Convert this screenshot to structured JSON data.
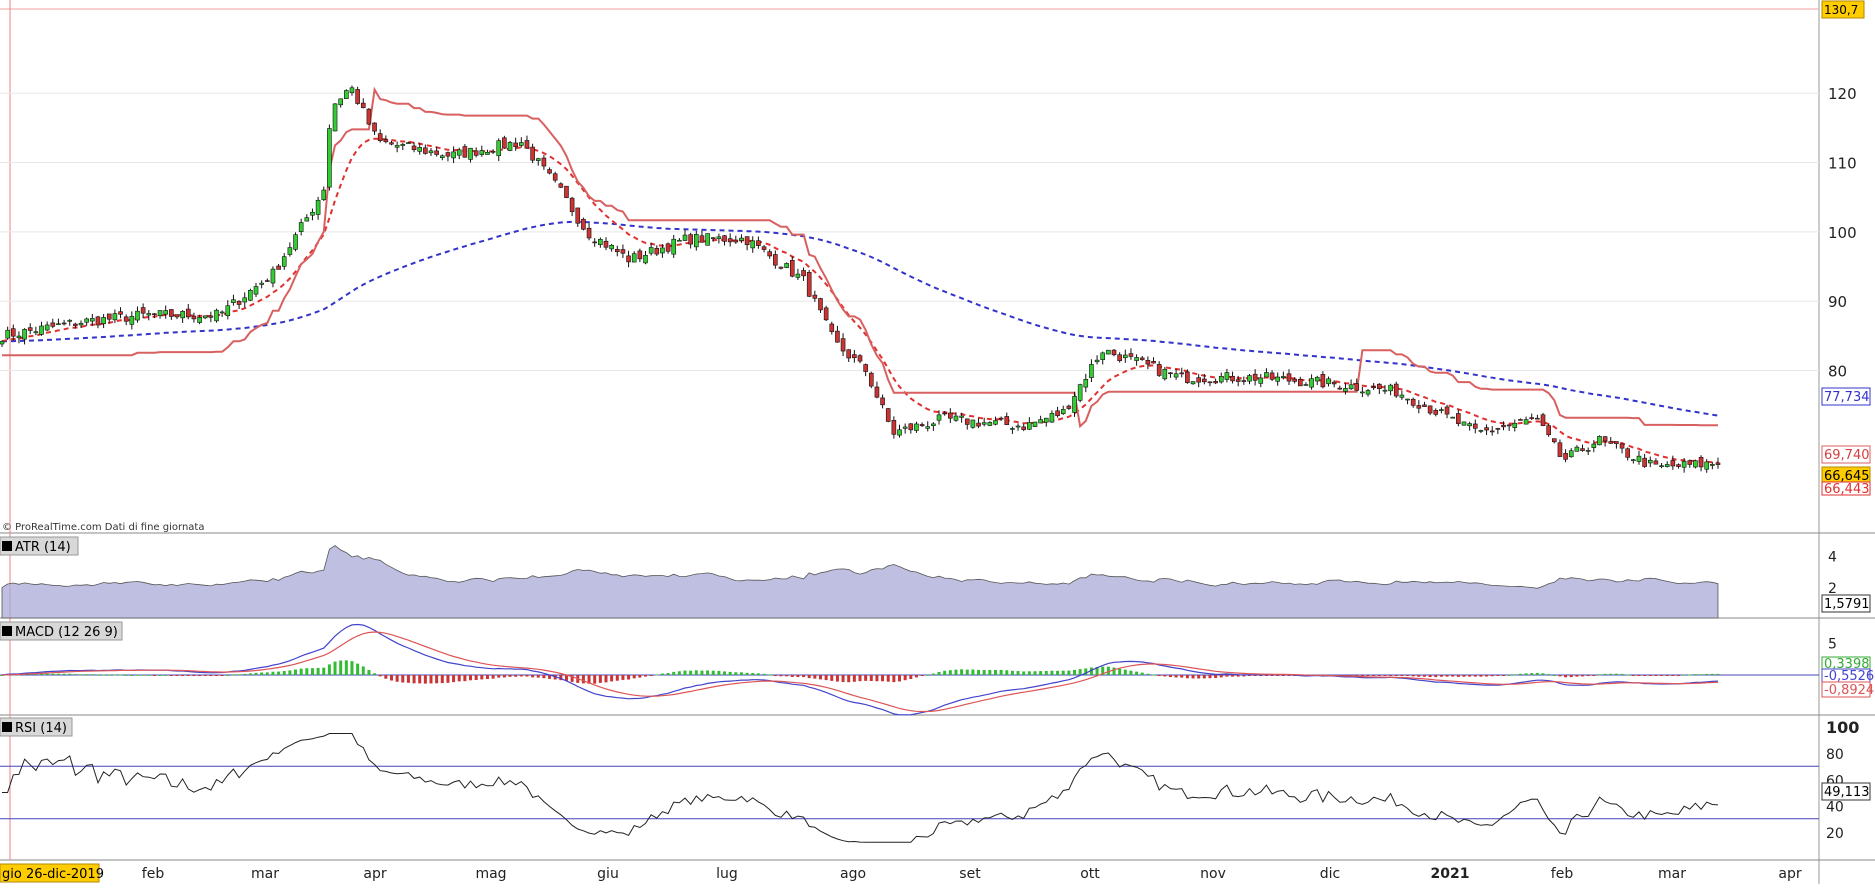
{
  "watermark": "© ProRealTime.com  Dati di fine giornata",
  "cursor_date": "gio 26-dic-2019",
  "price_panel": {
    "top_badge": "130,7",
    "y_ticks": [
      "120",
      "110",
      "100",
      "90",
      "80"
    ],
    "badges": {
      "ma_blue": "77,734",
      "stop_red": "69,740",
      "close": "66,645",
      "ma_red": "66,443"
    }
  },
  "atr_panel": {
    "title": "ATR (14)",
    "y_ticks": [
      "4",
      "2"
    ],
    "badge": "1,5791"
  },
  "macd_panel": {
    "title": "MACD (12 26 9)",
    "y_ticks": [
      "5"
    ],
    "badges": {
      "hist": "0,3398",
      "macd": "-0,5526",
      "signal": "-0,8924"
    }
  },
  "rsi_panel": {
    "title": "RSI (14)",
    "y_ticks": [
      "100",
      "80",
      "60",
      "40",
      "20"
    ],
    "badge": "49,113"
  },
  "x_axis": {
    "labels": [
      "feb",
      "mar",
      "apr",
      "mag",
      "giu",
      "lug",
      "ago",
      "set",
      "ott",
      "nov",
      "dic",
      "2021",
      "feb",
      "mar",
      "apr"
    ]
  },
  "colors": {
    "up": "#33cc33",
    "down": "#cc3333",
    "ma_blue": "#3333cc",
    "ma_red": "#e03030",
    "trail_up": "#33bb33",
    "trail_down": "#d96060",
    "atr_fill": "#aaaad8",
    "grid": "#e8e8e8",
    "macd_line": "#4444cc",
    "signal_line": "#dd5555",
    "rsi_line": "#222222",
    "rsi_level": "#4444bb",
    "badge_bg": "#ffcc00"
  },
  "chart_data": {
    "type": "candlestick",
    "series_keypoints": {
      "dates": [
        "2019-12-26",
        "2020-01-15",
        "2020-02-01",
        "2020-02-20",
        "2020-03-05",
        "2020-03-18",
        "2020-03-20",
        "2020-03-25",
        "2020-04-01",
        "2020-04-20",
        "2020-05-08",
        "2020-05-18",
        "2020-05-25",
        "2020-06-05",
        "2020-06-20",
        "2020-07-05",
        "2020-07-20",
        "2020-07-28",
        "2020-08-05",
        "2020-08-12",
        "2020-08-25",
        "2020-09-15",
        "2020-09-25",
        "2020-10-05",
        "2020-10-25",
        "2020-11-15",
        "2020-12-05",
        "2020-12-20",
        "2021-01-10",
        "2021-01-25",
        "2021-02-01",
        "2021-02-10",
        "2021-02-25",
        "2021-03-12"
      ],
      "close": [
        85,
        87,
        88,
        88,
        94,
        106,
        118,
        121,
        113,
        111,
        113,
        106,
        100,
        96,
        99,
        99,
        93,
        84,
        80,
        71,
        73,
        72,
        74,
        83,
        79,
        79,
        78,
        77,
        71,
        73,
        67,
        70,
        66,
        66.6
      ]
    },
    "indicators": {
      "ma_blue_last": 77.734,
      "ma_red_last": 66.443,
      "stop_last": 69.74,
      "atr_last": 1.5791,
      "macd_hist_last": 0.3398,
      "macd_last": -0.5526,
      "signal_last": -0.8924,
      "rsi_last": 49.113
    },
    "y_range_price": [
      57,
      132
    ]
  }
}
